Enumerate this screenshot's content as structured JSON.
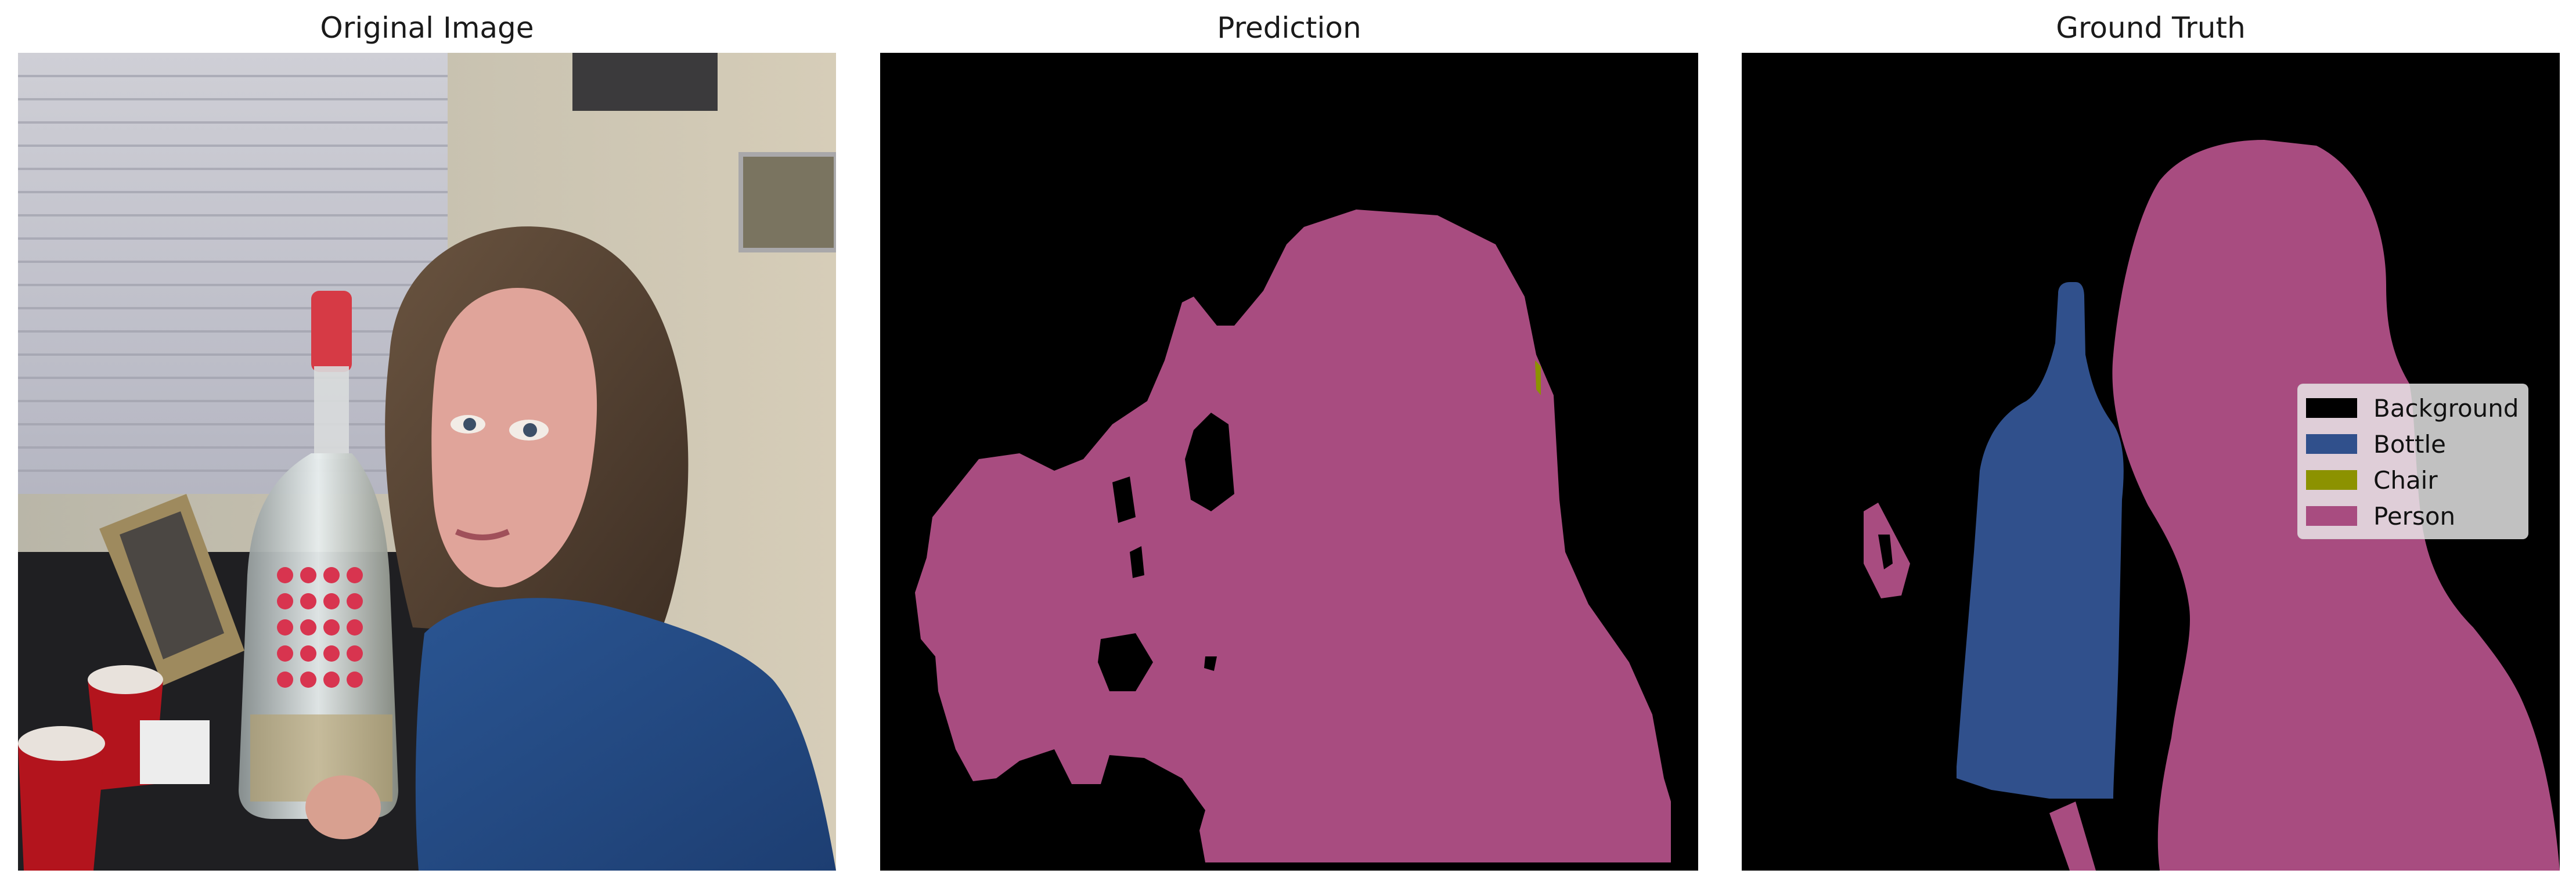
{
  "panels": [
    {
      "title": "Original Image"
    },
    {
      "title": "Prediction"
    },
    {
      "title": "Ground Truth"
    }
  ],
  "legend": {
    "items": [
      {
        "label": "Background",
        "color": "#000000"
      },
      {
        "label": "Bottle",
        "color": "#30508c"
      },
      {
        "label": "Chair",
        "color": "#8c9200"
      },
      {
        "label": "Person",
        "color": "#a84c80"
      }
    ]
  },
  "photo": {
    "subject": "young woman with brown hair holding a large clear liquor bottle with red cap",
    "scene": "room with window blinds, framed photos, red plastic cups on table"
  }
}
